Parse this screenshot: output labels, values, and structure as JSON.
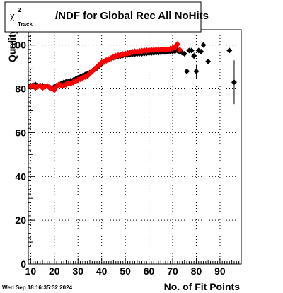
{
  "title": {
    "symbol": "χ",
    "superscript": "2",
    "subscript": "Track",
    "rest": "/NDF for Global Rec All NoHits"
  },
  "timestamp": "Wed Sep 18 16:35:32 2024",
  "chart_data": {
    "type": "scatter",
    "title": "χ²_Track/NDF for Global Rec All NoHits",
    "xlabel": "No. of Fit Points",
    "ylabel": "Quality",
    "xlim": [
      9,
      99
    ],
    "ylim": [
      0,
      107
    ],
    "grid": true,
    "x_ticks": [
      10,
      20,
      30,
      40,
      50,
      60,
      70,
      80,
      90
    ],
    "y_ticks": [
      0,
      20,
      40,
      60,
      80,
      100
    ],
    "colors": {
      "series_black": "#000000",
      "series_red": "#ff0000",
      "frame": "#000000",
      "grid": "#000000"
    },
    "series": [
      {
        "color": "#000000",
        "marker": "diamond",
        "x": [
          10,
          11,
          12,
          13,
          14,
          15,
          16,
          17,
          18,
          19,
          20,
          21,
          22,
          23,
          24,
          25,
          26,
          27,
          28,
          29,
          30,
          31,
          32,
          33,
          34,
          35,
          36,
          37,
          38,
          39,
          40,
          41,
          42,
          43,
          44,
          45,
          46,
          47,
          48,
          49,
          50,
          51,
          52,
          53,
          54,
          55,
          56,
          57,
          58,
          59,
          60,
          61,
          62,
          63,
          64,
          65,
          66,
          67,
          68,
          69,
          70,
          71,
          72,
          73,
          74,
          75,
          76,
          77,
          78,
          79,
          80,
          81,
          82,
          83,
          85,
          94,
          96
        ],
        "y": [
          81.5,
          81.8,
          82,
          81.5,
          81.2,
          81.5,
          81,
          81.2,
          80.8,
          80.5,
          81,
          81.5,
          82,
          82.5,
          83,
          83.3,
          83.5,
          83.8,
          84,
          84.5,
          85,
          85.5,
          86,
          86.5,
          87,
          87.5,
          88,
          88.8,
          89.5,
          90.5,
          91.5,
          92.2,
          92.8,
          93.3,
          93.8,
          94.2,
          94.5,
          94.8,
          95,
          95.2,
          95.3,
          95.5,
          95.6,
          95.7,
          95.8,
          95.9,
          96,
          96,
          96.1,
          96.2,
          96.3,
          96.3,
          96.4,
          96.5,
          96.5,
          96.6,
          96.7,
          96.8,
          96.9,
          97,
          97,
          97.2,
          97.5,
          96.8,
          96.5,
          96,
          88,
          97.5,
          97.5,
          95,
          88,
          97.5,
          97,
          100,
          92.5,
          97.5,
          83
        ],
        "yerr": [
          0,
          0,
          0,
          0,
          0,
          0,
          0,
          0,
          0,
          0,
          0,
          0,
          0,
          0,
          0,
          0,
          0,
          0,
          0,
          0,
          0,
          0,
          0,
          0,
          0,
          0,
          0,
          0,
          0,
          0,
          0,
          0,
          0,
          0,
          0,
          0,
          0,
          0,
          0,
          0,
          0,
          0,
          0,
          0,
          0,
          0,
          0,
          0,
          0,
          0,
          0,
          0,
          0,
          0,
          0,
          0,
          0,
          0,
          0,
          0,
          0,
          0,
          0,
          0,
          0,
          0,
          0.5,
          0.5,
          1,
          1.5,
          3,
          1,
          1,
          1,
          1,
          1,
          10
        ]
      },
      {
        "color": "#ff0000",
        "marker": "diamond",
        "x": [
          10,
          11,
          12,
          13,
          14,
          15,
          16,
          17,
          18,
          19,
          20,
          21,
          22,
          23,
          24,
          25,
          26,
          27,
          28,
          29,
          30,
          31,
          32,
          33,
          34,
          35,
          36,
          37,
          38,
          39,
          40,
          41,
          42,
          43,
          44,
          45,
          46,
          47,
          48,
          49,
          50,
          51,
          52,
          53,
          54,
          55,
          56,
          57,
          58,
          59,
          60,
          61,
          62,
          63,
          64,
          65,
          66,
          67,
          68,
          69,
          70,
          71,
          72,
          73
        ],
        "y": [
          81,
          81.5,
          80.5,
          81,
          81.5,
          80.5,
          81,
          81.2,
          80.5,
          80,
          79.5,
          81,
          82,
          81.5,
          81.5,
          82,
          82.5,
          82.5,
          83,
          83.5,
          84,
          84.5,
          85,
          85.5,
          86,
          87,
          88,
          89,
          90,
          91,
          92,
          92.5,
          93,
          93.5,
          94,
          94.5,
          95,
          95.3,
          95.5,
          95.8,
          96,
          96.3,
          96.5,
          96.8,
          97,
          97,
          97.2,
          97.3,
          97.5,
          97.5,
          97.6,
          97.7,
          97.7,
          97.8,
          97.8,
          97.9,
          98,
          98,
          98,
          98.2,
          98.5,
          99,
          100.3,
          97.8
        ],
        "yerr": []
      }
    ]
  }
}
